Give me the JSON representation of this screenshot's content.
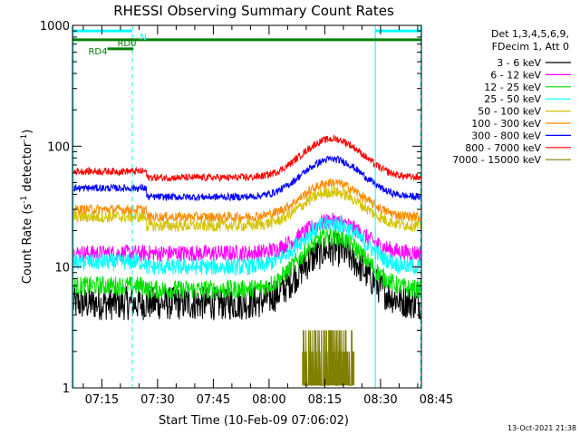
{
  "chart_data": {
    "type": "line",
    "title": "RHESSI Observing Summary Count Rates",
    "xlabel": "Start Time (10-Feb-09 07:06:02)",
    "ylabel_main": "Count Rate (s",
    "ylabel_sup1": "-1",
    "ylabel_mid": " detector",
    "ylabel_sup2": "-1",
    "ylabel_end": ")",
    "yscale": "log",
    "ylim": [
      1,
      1000
    ],
    "xlim_minutes": [
      7.1,
      101.0
    ],
    "x_ticks": [
      {
        "minute": 15,
        "label": "07:15"
      },
      {
        "minute": 30,
        "label": "07:30"
      },
      {
        "minute": 45,
        "label": "07:45"
      },
      {
        "minute": 60,
        "label": "08:00"
      },
      {
        "minute": 75,
        "label": "08:15"
      },
      {
        "minute": 90,
        "label": "08:30"
      },
      {
        "minute": 105,
        "label": "08:45"
      }
    ],
    "y_ticks": [
      {
        "value": 1,
        "label": "1"
      },
      {
        "value": 10,
        "label": "10"
      },
      {
        "value": 100,
        "label": "100"
      },
      {
        "value": 1000,
        "label": "1000"
      }
    ],
    "legend_header": [
      "Det 1,3,4,5,6,9,",
      "FDecim 1, Att 0"
    ],
    "series": [
      {
        "name": "3 - 6 keV",
        "color": "#000000",
        "base": 5,
        "pre": 5,
        "peak": 14,
        "noise": 0.14
      },
      {
        "name": "6 - 12 keV",
        "color": "#ff00ff",
        "base": 13,
        "pre": 13,
        "peak": 24,
        "noise": 0.07
      },
      {
        "name": "12 - 25 keV",
        "color": "#00e000",
        "base": 6.5,
        "pre": 7,
        "peak": 18,
        "noise": 0.08
      },
      {
        "name": "25 - 50 keV",
        "color": "#00ffff",
        "base": 10,
        "pre": 11,
        "peak": 23,
        "noise": 0.07
      },
      {
        "name": "50 - 100 keV",
        "color": "#d4c400",
        "base": 22,
        "pre": 26,
        "peak": 42,
        "noise": 0.05
      },
      {
        "name": "100 - 300 keV",
        "color": "#ff8c00",
        "base": 26,
        "pre": 30,
        "peak": 50,
        "noise": 0.04
      },
      {
        "name": "300 - 800 keV",
        "color": "#0000ff",
        "base": 38,
        "pre": 45,
        "peak": 78,
        "noise": 0.03
      },
      {
        "name": "800 - 7000 keV",
        "color": "#ff0000",
        "base": 55,
        "pre": 62,
        "peak": 115,
        "noise": 0.03
      },
      {
        "name": "7000 - 15000 keV",
        "color": "#808000"
      }
    ],
    "flare_peak_minute": 77,
    "attenuator_step_minute": 27,
    "vlines": [
      {
        "minute": 7.3,
        "style": "solid"
      },
      {
        "minute": 23.2,
        "style": "dashed"
      },
      {
        "minute": 88.6,
        "style": "solid"
      },
      {
        "minute": 100.8,
        "style": "dashed"
      }
    ],
    "flag_bars": [
      {
        "label": "N",
        "color": "#00ffff",
        "segments": [
          [
            7.1,
            23.2
          ],
          [
            88.6,
            101.0
          ]
        ],
        "value": 900
      },
      {
        "label": "RD0",
        "color": "#008000",
        "segments": [
          [
            7.1,
            101.0
          ]
        ],
        "value": 760
      },
      {
        "label": "RD4",
        "color": "#008000",
        "segments": [
          [
            16.5,
            23.5
          ]
        ],
        "value": 640
      }
    ],
    "bottom_note": "13-Oct-2021 21:38"
  }
}
